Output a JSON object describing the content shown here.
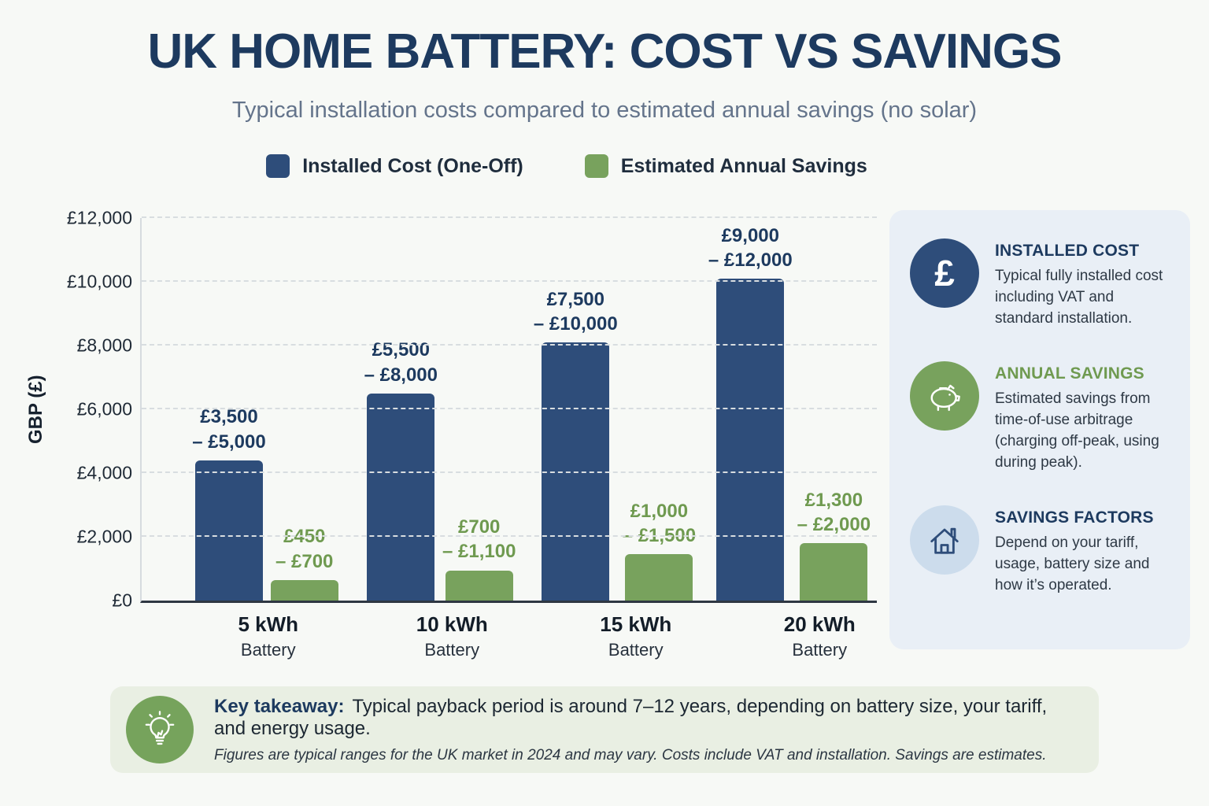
{
  "header": {
    "title": "UK HOME BATTERY: COST VS SAVINGS",
    "subtitle": "Typical installation costs compared to estimated annual savings (no solar)"
  },
  "colors": {
    "navy": "#2e4d7a",
    "green": "#78a25d",
    "title_navy": "#1d3a5f",
    "heading_green": "#6f9a50",
    "panel_bg": "#e9eff6",
    "banner_bg": "#e9efe3"
  },
  "legend": [
    {
      "label": "Installed Cost (One-Off)",
      "color": "#2e4d7a"
    },
    {
      "label": "Estimated Annual Savings",
      "color": "#78a25d"
    }
  ],
  "chart_data": {
    "type": "bar",
    "title": "UK Home Battery: Cost vs Savings",
    "xlabel": "",
    "ylabel": "GBP (£)",
    "ylim": [
      0,
      12000
    ],
    "grid": "horizontal-dashed",
    "legend_position": "top",
    "yticks": [
      0,
      2000,
      4000,
      6000,
      8000,
      10000,
      12000
    ],
    "ytick_labels": [
      "£0",
      "£2,000",
      "£4,000",
      "£6,000",
      "£8,000",
      "£10,000",
      "£12,000"
    ],
    "categories": [
      {
        "key": "5-kwh",
        "size": "5 kWh",
        "sub": "Battery"
      },
      {
        "key": "10-kwh",
        "size": "10 kWh",
        "sub": "Battery"
      },
      {
        "key": "15-kwh",
        "size": "15 kWh",
        "sub": "Battery"
      },
      {
        "key": "20-kwh",
        "size": "20 kWh",
        "sub": "Battery"
      }
    ],
    "series": [
      {
        "key": "installed-cost",
        "name": "Installed Cost (One-Off)",
        "color": "#2e4d7a",
        "label_color": "#1d3a5f",
        "values": [
          4400,
          6500,
          8100,
          10100
        ],
        "range_labels": [
          [
            "£3,500",
            "– £5,000"
          ],
          [
            "£5,500",
            "– £8,000"
          ],
          [
            "£7,500",
            "– £10,000"
          ],
          [
            "£9,000",
            "– £12,000"
          ]
        ]
      },
      {
        "key": "annual-savings",
        "name": "Estimated Annual Savings",
        "color": "#78a25d",
        "label_color": "#6f9a50",
        "values": [
          650,
          950,
          1450,
          1800
        ],
        "range_labels": [
          [
            "£450",
            "– £700"
          ],
          [
            "£700",
            "– £1,100"
          ],
          [
            "£1,000",
            "– £1,500"
          ],
          [
            "£1,300",
            "– £2,000"
          ]
        ]
      }
    ]
  },
  "sidebar": {
    "items": [
      {
        "icon": "pound-icon",
        "title": "INSTALLED COST",
        "body": "Typical fully installed cost including VAT and standard installation."
      },
      {
        "icon": "piggy-bank-icon",
        "title": "ANNUAL SAVINGS",
        "body": "Estimated savings from time-of-use arbitrage (charging off-peak, using during peak)."
      },
      {
        "icon": "house-icon",
        "title": "SAVINGS FACTORS",
        "body": "Depend on your tariff, usage, battery size and how it’s operated."
      }
    ]
  },
  "takeaway": {
    "label": "Key takeaway:",
    "text": "Typical payback period is around 7–12 years, depending on battery size, your tariff, and energy usage.",
    "note": "Figures are typical ranges for the UK market in 2024 and may vary. Costs include VAT and installation. Savings are estimates."
  }
}
